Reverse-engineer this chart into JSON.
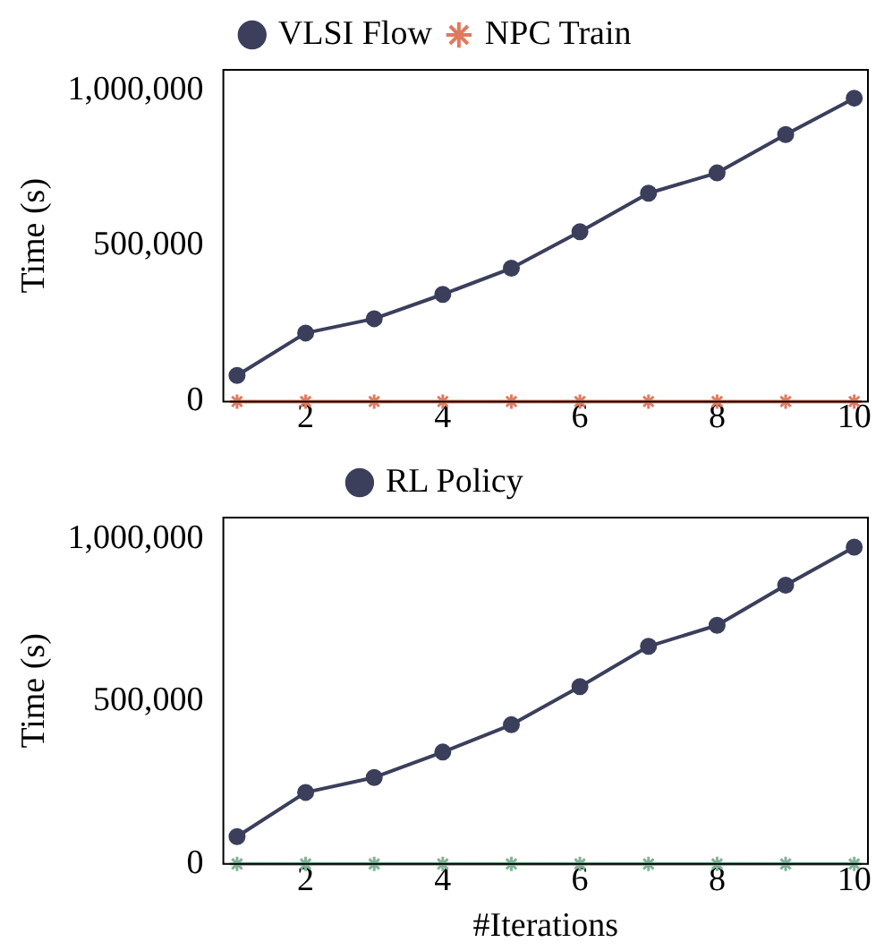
{
  "chart_data": [
    {
      "type": "line",
      "ylabel": "Time (s)",
      "x": [
        1,
        2,
        3,
        4,
        5,
        6,
        7,
        8,
        9,
        10
      ],
      "series": [
        {
          "name": "VLSI Flow",
          "color": "#3b3f5c",
          "marker": "circle",
          "values": [
            84000,
            220000,
            266000,
            344000,
            428000,
            545000,
            669000,
            734000,
            857000,
            974000
          ]
        },
        {
          "name": "NPC Train",
          "color": "#e07a5f",
          "marker": "cross",
          "values": [
            0,
            0,
            0,
            0,
            0,
            0,
            0,
            0,
            0,
            0
          ]
        }
      ],
      "xlim": [
        0.8,
        10.2
      ],
      "xticks": [
        2,
        4,
        6,
        8,
        10
      ],
      "ylim": [
        0,
        1065000
      ],
      "yticks": [
        {
          "value": 0,
          "label": "0"
        },
        {
          "value": 500000,
          "label": "500,000"
        },
        {
          "value": 1000000,
          "label": "1,000,000"
        }
      ],
      "legend": "top",
      "grid": false
    },
    {
      "type": "line",
      "ylabel": "Time (s)",
      "xlabel": "#Iterations",
      "x": [
        1,
        2,
        3,
        4,
        5,
        6,
        7,
        8,
        9,
        10
      ],
      "series": [
        {
          "name": "RL Policy",
          "color": "#3b3f5c",
          "marker": "circle",
          "values": [
            84000,
            220000,
            266000,
            344000,
            428000,
            545000,
            669000,
            734000,
            857000,
            974000
          ]
        },
        {
          "color": "#81b29a",
          "marker": "cross",
          "values": [
            0,
            0,
            0,
            0,
            0,
            0,
            0,
            0,
            0,
            0
          ]
        }
      ],
      "xlim": [
        0.8,
        10.2
      ],
      "xticks": [
        2,
        4,
        6,
        8,
        10
      ],
      "ylim": [
        0,
        1065000
      ],
      "yticks": [
        {
          "value": 0,
          "label": "0"
        },
        {
          "value": 500000,
          "label": "500,000"
        },
        {
          "value": 1000000,
          "label": "1,000,000"
        }
      ],
      "legend": "top",
      "grid": false
    }
  ]
}
